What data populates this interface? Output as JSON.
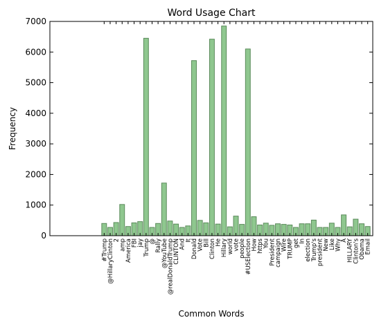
{
  "chart_data": {
    "type": "bar",
    "title": "Word Usage Chart",
    "x_label": "Common Words",
    "y_label": "Frequency",
    "categories": [
      "#Trump",
      "@HillaryClinton",
      "2",
      "amp",
      "America",
      "FBI",
      "jay",
      "Trump",
      "@",
      "Rally",
      "@YouTube",
      "@realDonaldTrump",
      "CLINTON",
      "And",
      "It",
      "Donald",
      "Vote",
      "Bill",
      "Clinton",
      "He",
      "Hillary",
      "world",
      "vote",
      "people",
      "#USElection",
      "How",
      "https",
      "You",
      "President",
      "campaign",
      "Wire",
      "TRUMP",
      "get",
      "In",
      "election",
      "Trump's",
      "president",
      "New",
      "Like",
      "Why",
      "A",
      "HILLARY",
      "Clinton's",
      "Obama",
      "Email"
    ],
    "values": [
      400,
      270,
      430,
      1020,
      300,
      420,
      460,
      6450,
      270,
      400,
      1720,
      480,
      380,
      270,
      320,
      5720,
      500,
      420,
      6420,
      380,
      6850,
      290,
      640,
      370,
      6100,
      620,
      350,
      410,
      340,
      390,
      370,
      350,
      270,
      390,
      390,
      510,
      270,
      270,
      410,
      270,
      680,
      290,
      540,
      390,
      300
    ],
    "color": "#8fc78f",
    "edge_color": "#5a8a5a",
    "ylim": [
      0,
      7000
    ],
    "yticks": [
      0,
      1000,
      2000,
      3000,
      4000,
      5000,
      6000,
      7000
    ]
  }
}
